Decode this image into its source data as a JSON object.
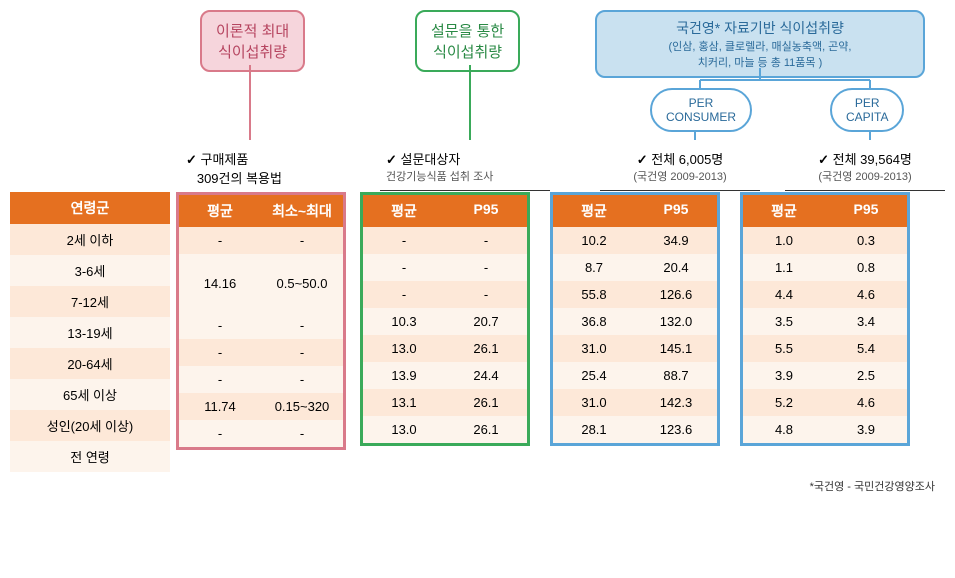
{
  "labels": {
    "pink": {
      "line1": "이론적 최대",
      "line2": "식이섭취량"
    },
    "green": {
      "line1": "설문을 통한",
      "line2": "식이섭취량"
    },
    "blue": {
      "title": "국건영* 자료기반 식이섭취량",
      "sub1": "(인삼, 홍삼, 클로렐라, 매실농축액, 곤약,",
      "sub2": "치커리, 마늘 등 총 11품목 )"
    },
    "perConsumer": "PER\nCONSUMER",
    "perCapita": "PER\nCAPITA"
  },
  "info": {
    "pink": {
      "l1": "구매제품",
      "l2": "309건의 복용법"
    },
    "green": {
      "l1": "설문대상자",
      "l2": "건강기능식품 섭취 조사"
    },
    "blue1": {
      "l1": "전체 6,005명",
      "l2": "(국건영 2009-2013)"
    },
    "blue2": {
      "l1": "전체 39,564명",
      "l2": "(국건영 2009-2013)"
    }
  },
  "headers": {
    "age": "연령군",
    "avg": "평균",
    "minmax": "최소~최대",
    "p95": "P95"
  },
  "ageRows": [
    "2세 이하",
    "3-6세",
    "7-12세",
    "13-19세",
    "20-64세",
    "65세 이상",
    "성인(20세 이상)",
    "전 연령"
  ],
  "pinkData": {
    "avg": [
      "-",
      "14.16",
      "",
      "-",
      "-",
      "-",
      "11.74",
      "-"
    ],
    "mm": [
      "-",
      "0.5~50.0",
      "",
      "-",
      "-",
      "-",
      "0.15~320",
      "-"
    ],
    "merged": [
      false,
      true,
      "skip",
      false,
      false,
      false,
      false,
      false
    ]
  },
  "greenData": {
    "avg": [
      "-",
      "-",
      "-",
      "10.3",
      "13.0",
      "13.9",
      "13.1",
      "13.0"
    ],
    "p95": [
      "-",
      "-",
      "-",
      "20.7",
      "26.1",
      "24.4",
      "26.1",
      "26.1"
    ]
  },
  "blue1Data": {
    "avg": [
      "10.2",
      "8.7",
      "55.8",
      "36.8",
      "31.0",
      "25.4",
      "31.0",
      "28.1"
    ],
    "p95": [
      "34.9",
      "20.4",
      "126.6",
      "132.0",
      "145.1",
      "88.7",
      "142.3",
      "123.6"
    ]
  },
  "blue2Data": {
    "avg": [
      "1.0",
      "1.1",
      "4.4",
      "3.5",
      "5.5",
      "3.9",
      "5.2",
      "4.8"
    ],
    "p95": [
      "0.3",
      "0.8",
      "4.6",
      "3.4",
      "5.4",
      "2.5",
      "4.6",
      "3.9"
    ]
  },
  "footnote": "*국건영 - 국민건강영양조사",
  "colors": {
    "pink": "#d97a8a",
    "green": "#3aaa5a",
    "blue": "#5aa5d8",
    "hdr": "#e57020"
  }
}
